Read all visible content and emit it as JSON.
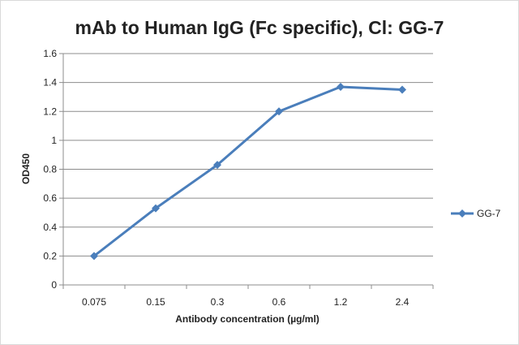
{
  "chart_data": {
    "type": "line",
    "title": "mAb to Human IgG (Fc specific), Cl: GG-7",
    "xlabel": "Antibody concentration (µg/ml)",
    "ylabel": "OD450",
    "categories": [
      "0.075",
      "0.15",
      "0.3",
      "0.6",
      "1.2",
      "2.4"
    ],
    "series": [
      {
        "name": "GG-7",
        "values": [
          0.2,
          0.53,
          0.83,
          1.2,
          1.37,
          1.35
        ],
        "color": "#4a7ebb",
        "marker": "diamond"
      }
    ],
    "ylim": [
      0,
      1.6
    ],
    "yticks": [
      "0",
      "0.2",
      "0.4",
      "0.6",
      "0.8",
      "1",
      "1.2",
      "1.4",
      "1.6"
    ],
    "grid": "horizontal",
    "legend_position": "right"
  }
}
